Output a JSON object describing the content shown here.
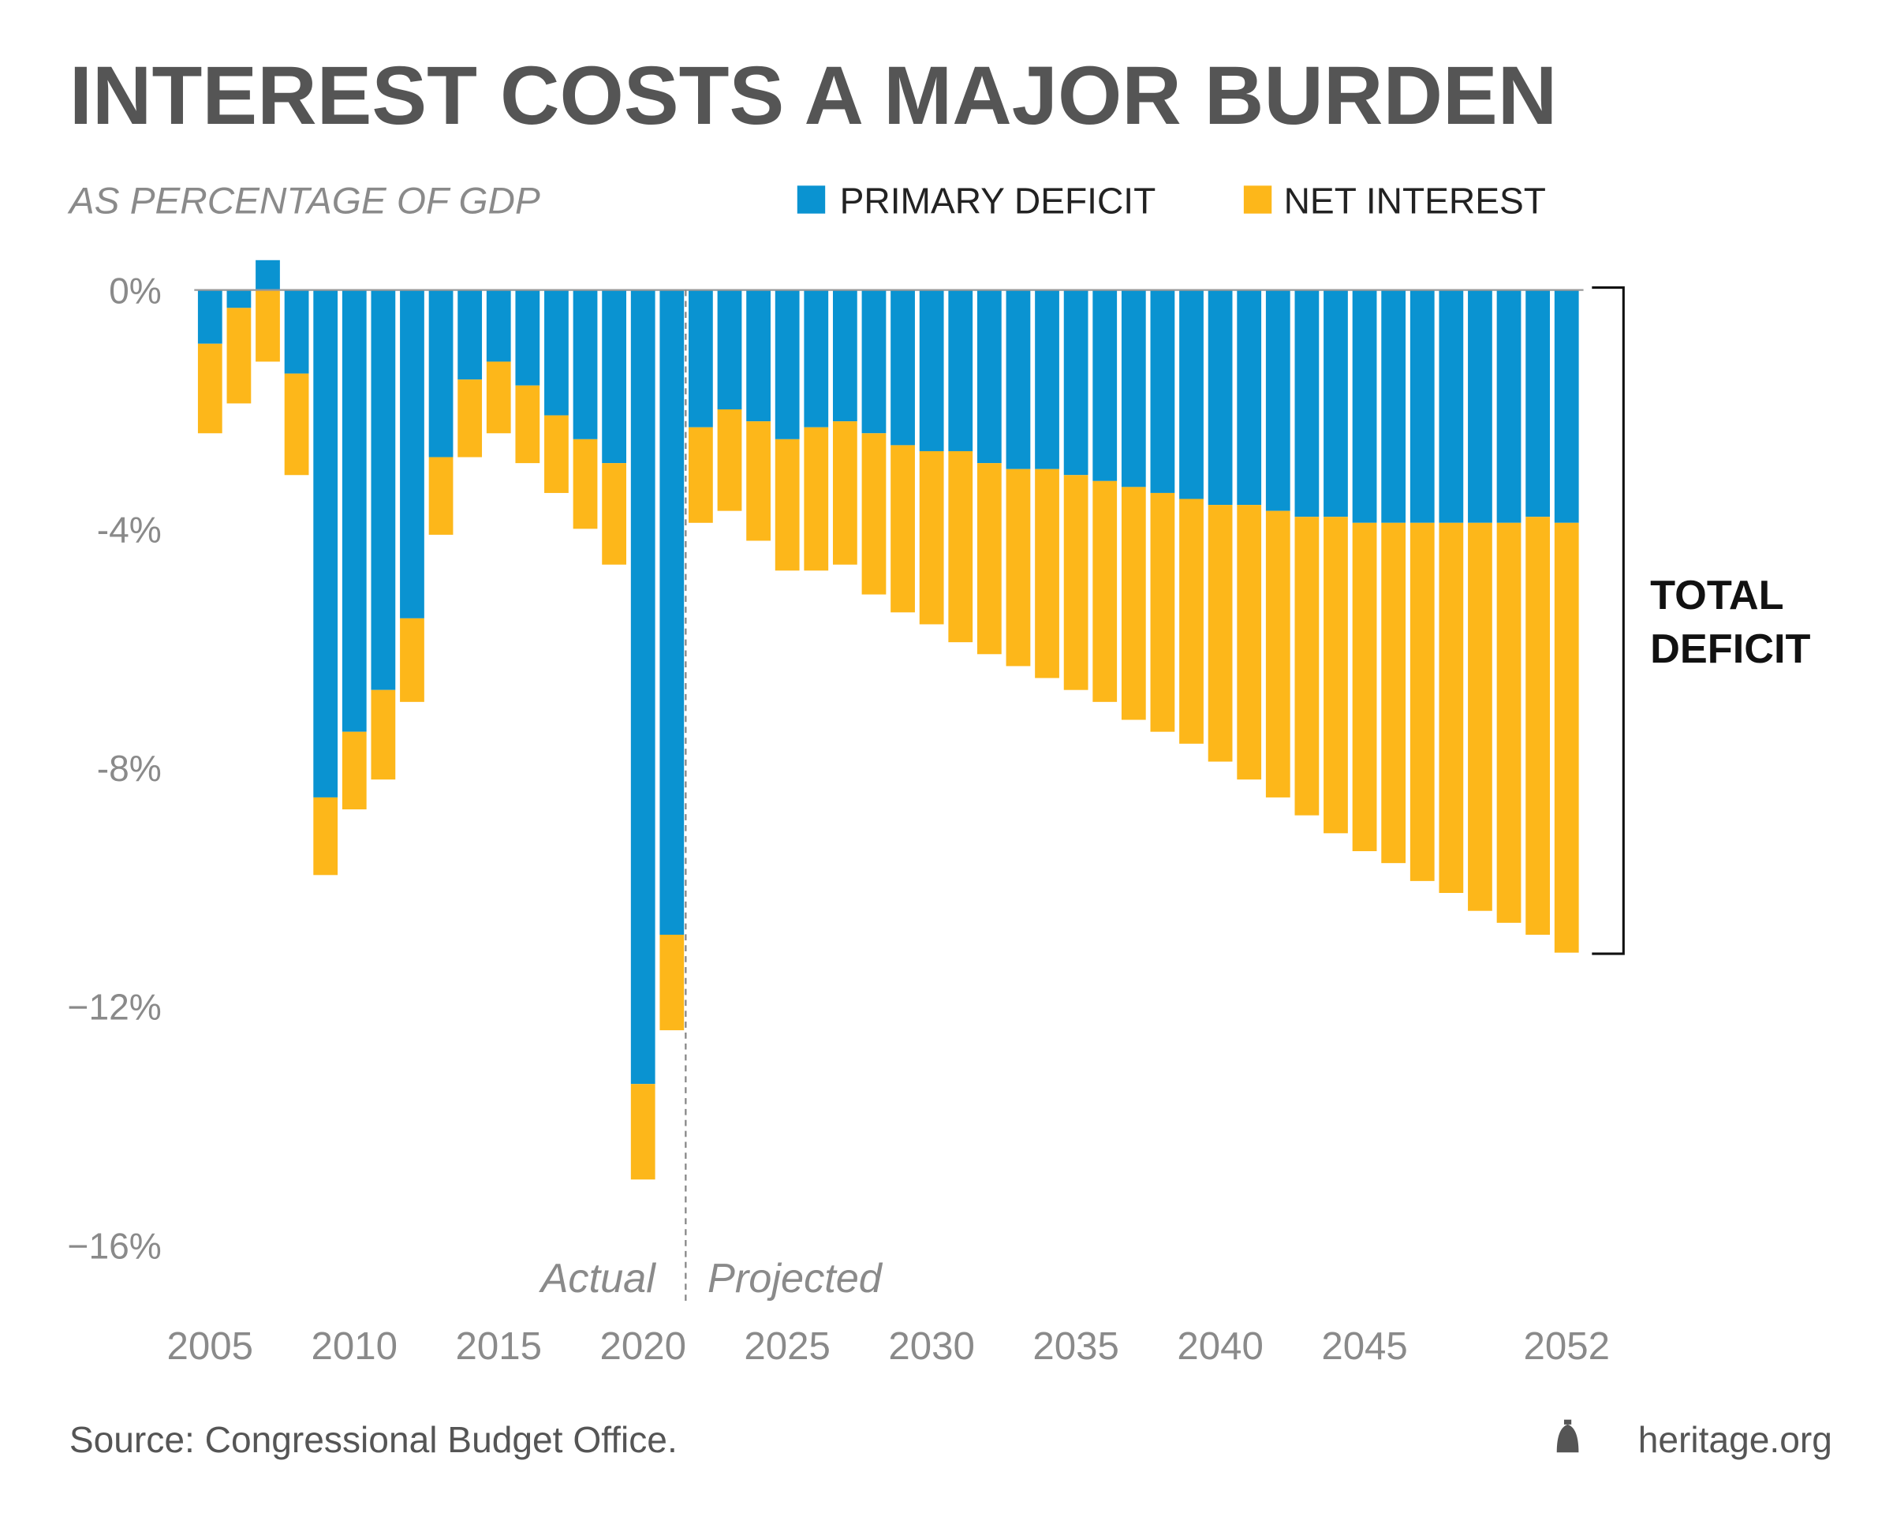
{
  "chart_data": {
    "type": "bar",
    "stacked": true,
    "title": "INTEREST COSTS A MAJOR BURDEN",
    "subtitle": "AS PERCENTAGE OF GDP",
    "ylabel": "AS PERCENTAGE OF GDP",
    "ylim": [
      -17,
      0.6
    ],
    "yticks": [
      0,
      -4,
      -8,
      -12,
      -16
    ],
    "ytick_labels": [
      "0%",
      "-4%",
      "-8%",
      "−12%",
      "−16%"
    ],
    "xtick_labels": [
      {
        "year": 2005,
        "label": "2005"
      },
      {
        "year": 2010,
        "label": "2010"
      },
      {
        "year": 2015,
        "label": "2015"
      },
      {
        "year": 2020,
        "label": "2020"
      },
      {
        "year": 2025,
        "label": "2025"
      },
      {
        "year": 2030,
        "label": "2030"
      },
      {
        "year": 2035,
        "label": "2035"
      },
      {
        "year": 2040,
        "label": "2040"
      },
      {
        "year": 2045,
        "label": "2045"
      },
      {
        "year": 2052,
        "label": "2052"
      }
    ],
    "legend_position": "top-right",
    "categories": [
      2005,
      2006,
      2007,
      2008,
      2009,
      2010,
      2011,
      2012,
      2013,
      2014,
      2015,
      2016,
      2017,
      2018,
      2019,
      2020,
      2021,
      2022,
      2023,
      2024,
      2025,
      2026,
      2027,
      2028,
      2029,
      2030,
      2031,
      2032,
      2033,
      2034,
      2035,
      2036,
      2037,
      2038,
      2039,
      2040,
      2041,
      2042,
      2043,
      2044,
      2045,
      2046,
      2047,
      2048,
      2049,
      2050,
      2051,
      2052
    ],
    "series": [
      {
        "name": "PRIMARY DEFICIT",
        "color": "#0a93d1",
        "values": [
          -0.9,
          -0.3,
          0.5,
          -1.4,
          -8.5,
          -7.4,
          -6.7,
          -5.5,
          -2.8,
          -1.5,
          -1.2,
          -1.6,
          -2.1,
          -2.5,
          -2.9,
          -13.3,
          -10.8,
          -2.3,
          -2.0,
          -2.2,
          -2.5,
          -2.3,
          -2.2,
          -2.4,
          -2.6,
          -2.7,
          -2.7,
          -2.9,
          -3.0,
          -3.0,
          -3.1,
          -3.2,
          -3.3,
          -3.4,
          -3.5,
          -3.6,
          -3.6,
          -3.7,
          -3.8,
          -3.8,
          -3.9,
          -3.9,
          -3.9,
          -3.9,
          -3.9,
          -3.9,
          -3.8,
          -3.9
        ]
      },
      {
        "name": "NET INTEREST",
        "color": "#fdb71a",
        "values": [
          -1.5,
          -1.6,
          -1.2,
          -1.7,
          -1.3,
          -1.3,
          -1.5,
          -1.4,
          -1.3,
          -1.3,
          -1.2,
          -1.3,
          -1.3,
          -1.5,
          -1.7,
          -1.6,
          -1.6,
          -1.6,
          -1.7,
          -2.0,
          -2.2,
          -2.4,
          -2.4,
          -2.7,
          -2.8,
          -2.9,
          -3.2,
          -3.2,
          -3.3,
          -3.5,
          -3.6,
          -3.7,
          -3.9,
          -4.0,
          -4.1,
          -4.3,
          -4.6,
          -4.8,
          -5.0,
          -5.3,
          -5.5,
          -5.7,
          -6.0,
          -6.2,
          -6.5,
          -6.7,
          -7.0,
          -7.2
        ]
      }
    ],
    "annotations": {
      "actual": "Actual",
      "projected": "Projected",
      "divider_after_year": 2021,
      "bracket_line1": "TOTAL",
      "bracket_line2": "DEFICIT"
    }
  },
  "footer": {
    "source": "Source: Congressional Budget Office.",
    "brand": "heritage.org",
    "brand_icon": "liberty-bell-icon"
  }
}
